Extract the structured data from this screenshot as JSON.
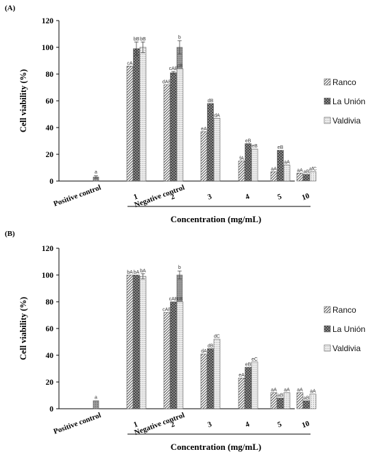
{
  "chart_data": [
    {
      "panel": "(A)",
      "type": "bar",
      "ylabel": "Cell viability (%)",
      "xlabel": "Concentration (mg/mL)",
      "ylim": [
        0,
        120
      ],
      "yticks": [
        "0",
        "20",
        "40",
        "60",
        "80",
        "100",
        "120"
      ],
      "controls": [
        {
          "label": "Positive control",
          "value": 3,
          "error": 1,
          "annotation": "a"
        },
        {
          "label": "Negative control",
          "value": 100,
          "error": 5,
          "annotation": "b"
        }
      ],
      "categories": [
        "1",
        "2",
        "3",
        "4",
        "5",
        "10"
      ],
      "series": [
        {
          "name": "Ranco",
          "values": [
            86,
            72,
            37,
            15,
            7,
            6
          ],
          "errors": [
            0,
            0,
            0,
            0,
            0,
            0
          ],
          "annotations": [
            "cA",
            "dAB",
            "eA",
            "fA",
            "aA",
            "aA"
          ]
        },
        {
          "name": "La Unión",
          "values": [
            99,
            81,
            58,
            28,
            23,
            5
          ],
          "errors": [
            5,
            1,
            0,
            0,
            0,
            0
          ],
          "annotations": [
            "bB",
            "cAB",
            "dB",
            "eB",
            "eB",
            "aB"
          ]
        },
        {
          "name": "Valdivia",
          "values": [
            100,
            84,
            47,
            24,
            12,
            7
          ],
          "errors": [
            4,
            0,
            0,
            0,
            0,
            0
          ],
          "annotations": [
            "bB",
            "cB",
            "dA",
            "eB",
            "aA",
            "afC"
          ]
        }
      ],
      "legend_position": "right",
      "grid": false
    },
    {
      "panel": "(B)",
      "type": "bar",
      "ylabel": "Cell viability (%)",
      "xlabel": "Concentration (mg/mL)",
      "ylim": [
        0,
        120
      ],
      "yticks": [
        "0",
        "20",
        "40",
        "60",
        "80",
        "100",
        "120"
      ],
      "controls": [
        {
          "label": "Positive control",
          "value": 6,
          "error": 0,
          "annotation": "a"
        },
        {
          "label": "Negative control",
          "value": 100,
          "error": 3,
          "annotation": "b"
        }
      ],
      "categories": [
        "1",
        "2",
        "3",
        "4",
        "5",
        "10"
      ],
      "series": [
        {
          "name": "Ranco",
          "values": [
            100,
            72,
            41,
            23,
            12,
            12
          ],
          "errors": [
            0,
            0,
            0,
            0,
            0,
            0
          ],
          "annotations": [
            "bA",
            "cAB",
            "dA",
            "eA",
            "aA",
            "aA"
          ]
        },
        {
          "name": "La Unión",
          "values": [
            100,
            80,
            45,
            31,
            8,
            6
          ],
          "errors": [
            0,
            0,
            0,
            0,
            0,
            0
          ],
          "annotations": [
            "bA",
            "cAB",
            "dB",
            "eB",
            "aB",
            "aB"
          ]
        },
        {
          "name": "Valdivia",
          "values": [
            99,
            80,
            52,
            35,
            12,
            11
          ],
          "errors": [
            2,
            0,
            0,
            0,
            0,
            0
          ],
          "annotations": [
            "bA",
            "cB",
            "dC",
            "eC",
            "aA",
            "aA"
          ]
        }
      ],
      "legend_position": "right",
      "grid": false
    }
  ],
  "colors": {
    "control": "#8a8a8a",
    "ranco": "#dcdcdc",
    "la_union": "#4a4a4a",
    "valdivia": "#d9d9d9",
    "axis": "#000000"
  }
}
